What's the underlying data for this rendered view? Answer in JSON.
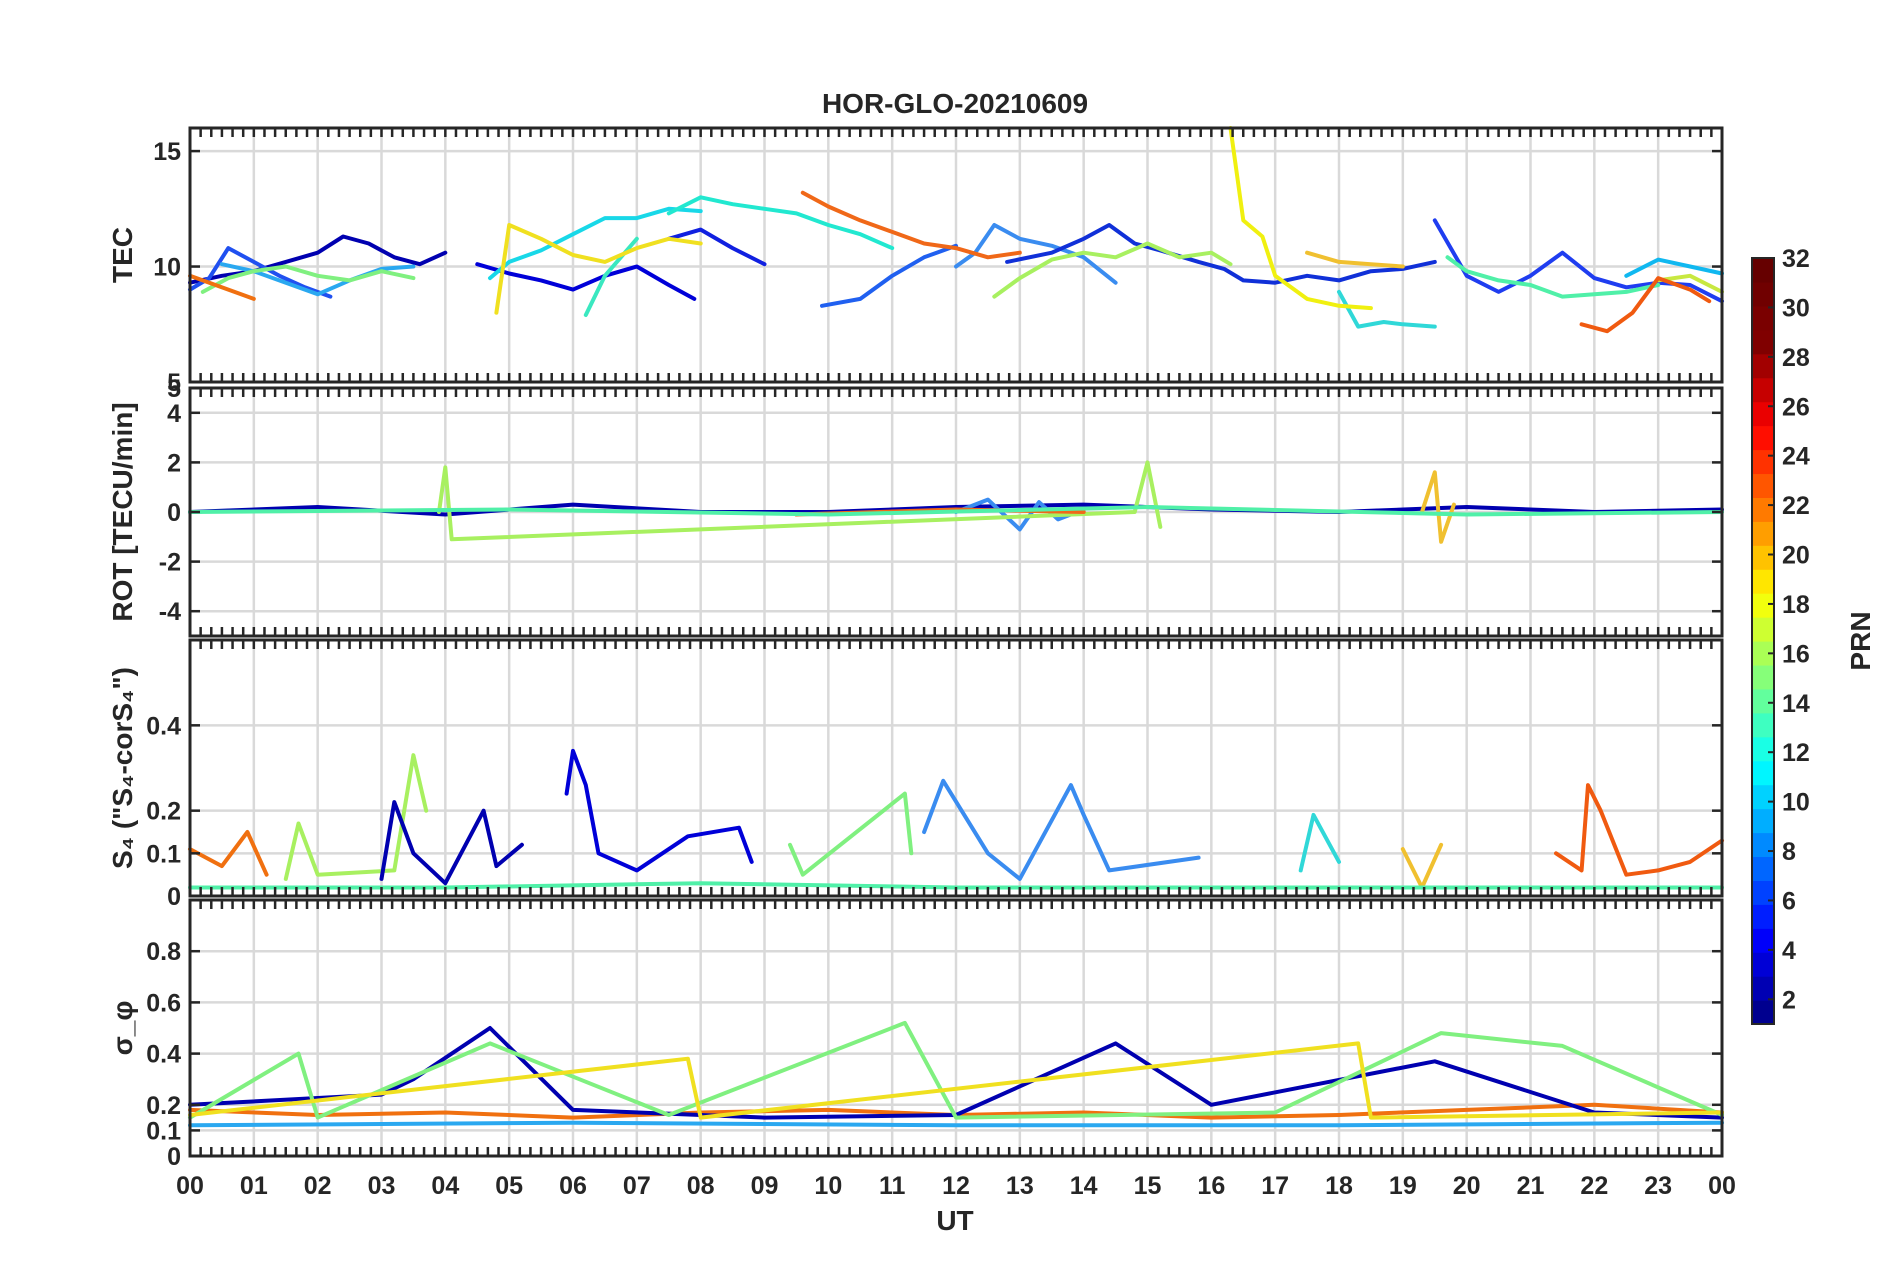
{
  "figure": {
    "title": "HOR-GLO-20210609"
  },
  "chart_data": [
    {
      "type": "line",
      "panel": "TEC",
      "ylabel": "TEC",
      "ylim": [
        5,
        16
      ],
      "yticks": [
        5,
        10,
        15
      ],
      "grid": true,
      "series": [
        {
          "name": "PRN 2",
          "color": "#0000b0",
          "x": [
            0.0,
            0.5,
            1.0,
            1.5,
            2.0,
            2.4,
            2.8,
            3.2,
            3.6,
            4.0
          ],
          "y": [
            9.3,
            9.6,
            9.8,
            10.2,
            10.6,
            11.3,
            11.0,
            10.4,
            10.1,
            10.6
          ]
        },
        {
          "name": "PRN 3",
          "color": "#0000d8",
          "x": [
            4.5,
            5.0,
            5.5,
            6.0,
            6.5,
            7.0,
            7.5,
            7.9
          ],
          "y": [
            10.1,
            9.7,
            9.4,
            9.0,
            9.6,
            10.0,
            9.2,
            8.6
          ]
        },
        {
          "name": "PRN 4",
          "color": "#1020e0",
          "x": [
            7.5,
            8.0,
            8.5,
            9.0
          ],
          "y": [
            11.2,
            11.6,
            10.8,
            10.1
          ]
        },
        {
          "name": "PRN 5",
          "color": "#2050f0",
          "x": [
            0.0,
            0.3,
            0.6,
            1.0,
            1.4,
            1.8,
            2.2
          ],
          "y": [
            9.0,
            9.5,
            10.8,
            10.2,
            9.6,
            9.1,
            8.7
          ]
        },
        {
          "name": "PRN 7",
          "color": "#2060f0",
          "x": [
            9.9,
            10.5,
            11.0,
            11.5,
            12.0
          ],
          "y": [
            8.3,
            8.6,
            9.6,
            10.4,
            10.9
          ]
        },
        {
          "name": "PRN 8",
          "color": "#3a8cf0",
          "x": [
            12.0,
            12.3,
            12.6,
            13.0,
            13.5,
            14.0,
            14.5
          ],
          "y": [
            10.0,
            10.6,
            11.8,
            11.2,
            10.9,
            10.4,
            9.3
          ]
        },
        {
          "name": "PRN 6",
          "color": "#1030d8",
          "x": [
            12.8,
            13.5,
            14.0,
            14.4,
            14.8,
            15.2,
            15.8,
            16.2,
            16.5,
            17.0,
            17.5,
            18.0,
            18.5,
            19.0,
            19.5
          ],
          "y": [
            10.2,
            10.6,
            11.2,
            11.8,
            11.0,
            10.7,
            10.2,
            9.9,
            9.4,
            9.3,
            9.6,
            9.4,
            9.8,
            9.9,
            10.2
          ]
        },
        {
          "name": "PRN 9",
          "color": "#1f3df0",
          "x": [
            19.5,
            20.0,
            20.5,
            21.0,
            21.5,
            22.0,
            22.5,
            23.0,
            23.5,
            24.0
          ],
          "y": [
            12.0,
            9.6,
            8.9,
            9.6,
            10.6,
            9.5,
            9.1,
            9.3,
            9.2,
            8.5
          ]
        },
        {
          "name": "PRN 10",
          "color": "#2aa8f0",
          "x": [
            0.5,
            1.0,
            1.5,
            2.0,
            2.5,
            3.0,
            3.5
          ],
          "y": [
            10.1,
            9.8,
            9.3,
            8.8,
            9.4,
            9.9,
            10.0
          ]
        },
        {
          "name": "PRN 11",
          "color": "#10b8f0",
          "x": [
            22.5,
            23.0,
            23.5,
            24.0
          ],
          "y": [
            9.6,
            10.3,
            10.0,
            9.7
          ]
        },
        {
          "name": "PRN 12",
          "color": "#18d8e8",
          "x": [
            4.7,
            5.0,
            5.5,
            6.0,
            6.5,
            7.0,
            7.5,
            8.0
          ],
          "y": [
            9.5,
            10.2,
            10.7,
            11.4,
            12.1,
            12.1,
            12.5,
            12.4
          ]
        },
        {
          "name": "PRN 13",
          "color": "#22e8d0",
          "x": [
            7.5,
            8.0,
            8.5,
            9.0,
            9.5,
            10.0,
            10.5,
            11.0
          ],
          "y": [
            12.3,
            13.0,
            12.7,
            12.5,
            12.3,
            11.8,
            11.4,
            10.8
          ]
        },
        {
          "name": "PRN 14",
          "color": "#3ae8c0",
          "x": [
            6.2,
            6.5,
            7.0
          ],
          "y": [
            7.9,
            9.6,
            11.2
          ]
        },
        {
          "name": "PRN 15",
          "color": "#30d8d8",
          "x": [
            18.0,
            18.3,
            18.7,
            19.0,
            19.5
          ],
          "y": [
            8.9,
            7.4,
            7.6,
            7.5,
            7.4
          ]
        },
        {
          "name": "PRN 16",
          "color": "#50f0a8",
          "x": [
            19.7,
            20.0,
            20.5,
            21.0,
            21.5,
            22.0,
            22.5,
            23.0
          ],
          "y": [
            10.4,
            9.8,
            9.4,
            9.2,
            8.7,
            8.8,
            8.9,
            9.2
          ]
        },
        {
          "name": "PRN 17",
          "color": "#80f080",
          "x": [
            0.2,
            0.6,
            1.0,
            1.5,
            2.0,
            2.5,
            3.0,
            3.5
          ],
          "y": [
            8.9,
            9.5,
            9.8,
            10.0,
            9.6,
            9.4,
            9.8,
            9.5
          ]
        },
        {
          "name": "PRN 18",
          "color": "#a8f060",
          "x": [
            12.6,
            13.0,
            13.5,
            14.0,
            14.5,
            15.0,
            15.5,
            16.0,
            16.3
          ],
          "y": [
            8.7,
            9.5,
            10.3,
            10.6,
            10.4,
            11.0,
            10.4,
            10.6,
            10.1
          ]
        },
        {
          "name": "PRN 19",
          "color": "#c8e840",
          "x": [
            23.0,
            23.5,
            24.0
          ],
          "y": [
            9.4,
            9.6,
            8.9
          ]
        },
        {
          "name": "PRN 20",
          "color": "#f0e020",
          "x": [
            4.8,
            5.0,
            5.5,
            6.0,
            6.5,
            7.0,
            7.5,
            8.0
          ],
          "y": [
            8.0,
            11.8,
            11.2,
            10.5,
            10.2,
            10.8,
            11.2,
            11.0
          ]
        },
        {
          "name": "PRN 21",
          "color": "#f0f010",
          "x": [
            16.3,
            16.5,
            16.8,
            17.0,
            17.5,
            18.0,
            18.5
          ],
          "y": [
            16.0,
            12.0,
            11.3,
            9.6,
            8.6,
            8.3,
            8.2
          ]
        },
        {
          "name": "PRN 22",
          "color": "#f0c030",
          "x": [
            17.5,
            18.0,
            18.5,
            19.0
          ],
          "y": [
            10.6,
            10.2,
            10.1,
            10.0
          ]
        },
        {
          "name": "PRN 24",
          "color": "#f07010",
          "x": [
            0.0,
            0.4,
            0.8,
            1.0
          ],
          "y": [
            9.6,
            9.2,
            8.8,
            8.6
          ]
        },
        {
          "name": "PRN 25",
          "color": "#f06818",
          "x": [
            9.6,
            10.0,
            10.5,
            11.0,
            11.5,
            12.0,
            12.5,
            13.0
          ],
          "y": [
            13.2,
            12.6,
            12.0,
            11.5,
            11.0,
            10.8,
            10.4,
            10.6
          ]
        },
        {
          "name": "PRN 26",
          "color": "#f05a10",
          "x": [
            21.8,
            22.2,
            22.6,
            23.0,
            23.5,
            23.8
          ],
          "y": [
            7.5,
            7.2,
            8.0,
            9.5,
            9.0,
            8.5
          ]
        }
      ]
    },
    {
      "type": "line",
      "panel": "ROT",
      "ylabel": "ROT [TECU/min]",
      "ylim": [
        -5,
        5
      ],
      "yticks": [
        -4,
        -2,
        0,
        2,
        4,
        5
      ],
      "grid": true,
      "series": [
        {
          "name": "PRN 2",
          "color": "#0000b0",
          "x": [
            0,
            2,
            4,
            6,
            8,
            10,
            12,
            14,
            16,
            18,
            20,
            22,
            24
          ],
          "y": [
            0,
            0.2,
            -0.1,
            0.3,
            0,
            0,
            0.2,
            0.3,
            0.1,
            0,
            0.2,
            0,
            0.1
          ]
        },
        {
          "name": "PRN 8",
          "color": "#3a8cf0",
          "x": [
            12.0,
            12.5,
            13.0,
            13.3,
            13.6,
            14.0
          ],
          "y": [
            0,
            0.5,
            -0.7,
            0.4,
            -0.3,
            0.1
          ]
        },
        {
          "name": "PRN 18",
          "color": "#a8f060",
          "x": [
            3.9,
            4.0,
            4.1,
            14.8,
            15.0,
            15.2
          ],
          "y": [
            0,
            1.8,
            -1.1,
            0,
            2.0,
            -0.6
          ]
        },
        {
          "name": "PRN 22",
          "color": "#f0c030",
          "x": [
            19.3,
            19.5,
            19.6,
            19.8
          ],
          "y": [
            0,
            1.6,
            -1.2,
            0.3
          ]
        },
        {
          "name": "PRN 25",
          "color": "#f06818",
          "x": [
            9.5,
            12.0,
            14.0
          ],
          "y": [
            -0.1,
            0.1,
            0
          ]
        },
        {
          "name": "PRN 16",
          "color": "#50f0a8",
          "x": [
            0,
            5,
            10,
            15,
            20,
            24
          ],
          "y": [
            0,
            0.1,
            -0.1,
            0.2,
            -0.1,
            0
          ]
        }
      ]
    },
    {
      "type": "line",
      "panel": "S4",
      "ylabel": "S₄ (\"S₄-corS₄\")",
      "ylim": [
        0,
        0.6
      ],
      "yticks": [
        0,
        0.1,
        0.2,
        0.4
      ],
      "grid": true,
      "series": [
        {
          "name": "PRN 24",
          "color": "#f07010",
          "x": [
            0,
            0.5,
            0.9,
            1.2
          ],
          "y": [
            0.11,
            0.07,
            0.15,
            0.05
          ]
        },
        {
          "name": "PRN 18",
          "color": "#a8f060",
          "x": [
            1.5,
            1.7,
            2.0,
            3.2,
            3.5,
            3.7
          ],
          "y": [
            0.04,
            0.17,
            0.05,
            0.06,
            0.33,
            0.2
          ]
        },
        {
          "name": "PRN 2",
          "color": "#0000b0",
          "x": [
            3.0,
            3.2,
            3.5,
            4.0,
            4.6,
            4.8,
            5.2
          ],
          "y": [
            0.04,
            0.22,
            0.1,
            0.03,
            0.2,
            0.07,
            0.12
          ]
        },
        {
          "name": "PRN 3",
          "color": "#0000d8",
          "x": [
            5.9,
            6.0,
            6.2,
            6.4,
            7.0,
            7.8,
            8.6,
            8.8
          ],
          "y": [
            0.24,
            0.34,
            0.26,
            0.1,
            0.06,
            0.14,
            0.16,
            0.08
          ]
        },
        {
          "name": "PRN 17",
          "color": "#80f080",
          "x": [
            9.4,
            9.6,
            11.2,
            11.3
          ],
          "y": [
            0.12,
            0.05,
            0.24,
            0.1
          ]
        },
        {
          "name": "PRN 8",
          "color": "#3a8cf0",
          "x": [
            11.5,
            11.8,
            12.5,
            13.0,
            13.8,
            14.0,
            14.4,
            15.8
          ],
          "y": [
            0.15,
            0.27,
            0.1,
            0.04,
            0.26,
            0.19,
            0.06,
            0.09
          ]
        },
        {
          "name": "PRN 15",
          "color": "#30d8d8",
          "x": [
            17.4,
            17.6,
            18.0
          ],
          "y": [
            0.06,
            0.19,
            0.08
          ]
        },
        {
          "name": "PRN 22",
          "color": "#f0c030",
          "x": [
            19.0,
            19.3,
            19.6
          ],
          "y": [
            0.11,
            0.02,
            0.12
          ]
        },
        {
          "name": "PRN 26",
          "color": "#f05a10",
          "x": [
            21.4,
            21.8,
            21.9,
            22.1,
            22.5,
            23.0,
            23.5,
            24.0
          ],
          "y": [
            0.1,
            0.06,
            0.26,
            0.2,
            0.05,
            0.06,
            0.08,
            0.13
          ]
        },
        {
          "name": "PRN 16",
          "color": "#50f0a8",
          "x": [
            0,
            4,
            8,
            12,
            16,
            20,
            24
          ],
          "y": [
            0.02,
            0.02,
            0.03,
            0.02,
            0.02,
            0.02,
            0.02
          ]
        }
      ]
    },
    {
      "type": "line",
      "panel": "sigma_phi",
      "ylabel": "σ_φ",
      "ylim": [
        0,
        1
      ],
      "yticks": [
        0,
        0.1,
        0.2,
        0.4,
        0.6,
        0.8
      ],
      "grid": true,
      "series": [
        {
          "name": "PRN 24",
          "color": "#f07010",
          "x": [
            0,
            2,
            4,
            6,
            8,
            10,
            12,
            14,
            16,
            18,
            20,
            22,
            24
          ],
          "y": [
            0.18,
            0.16,
            0.17,
            0.15,
            0.17,
            0.18,
            0.16,
            0.17,
            0.15,
            0.16,
            0.18,
            0.2,
            0.17
          ]
        },
        {
          "name": "PRN 2",
          "color": "#0000b0",
          "x": [
            0,
            3,
            3.5,
            4.7,
            6,
            9,
            12,
            14.5,
            16,
            19.5,
            22,
            24
          ],
          "y": [
            0.2,
            0.24,
            0.3,
            0.5,
            0.18,
            0.15,
            0.16,
            0.44,
            0.2,
            0.37,
            0.17,
            0.15
          ]
        },
        {
          "name": "PRN 17",
          "color": "#80f080",
          "x": [
            0,
            1.7,
            2,
            4.7,
            7.5,
            11.2,
            12,
            17,
            19.6,
            21.5,
            24
          ],
          "y": [
            0.15,
            0.4,
            0.15,
            0.44,
            0.16,
            0.52,
            0.15,
            0.17,
            0.48,
            0.43,
            0.16
          ]
        },
        {
          "name": "PRN 10",
          "color": "#2aa8f0",
          "x": [
            0,
            6,
            12,
            18,
            24
          ],
          "y": [
            0.12,
            0.13,
            0.12,
            0.12,
            0.13
          ]
        },
        {
          "name": "PRN 20",
          "color": "#f0e020",
          "x": [
            0,
            7.8,
            8,
            18.3,
            18.5,
            24
          ],
          "y": [
            0.16,
            0.38,
            0.15,
            0.44,
            0.15,
            0.17
          ]
        }
      ]
    }
  ],
  "xaxis": {
    "label": "UT",
    "ticks": [
      "00",
      "01",
      "02",
      "03",
      "04",
      "05",
      "06",
      "07",
      "08",
      "09",
      "10",
      "11",
      "12",
      "13",
      "14",
      "15",
      "16",
      "17",
      "18",
      "19",
      "20",
      "21",
      "22",
      "23",
      "00"
    ],
    "range": [
      0,
      24
    ]
  },
  "colorbar": {
    "label": "PRN",
    "range": [
      1,
      32
    ],
    "ticks": [
      "2",
      "4",
      "6",
      "8",
      "10",
      "12",
      "14",
      "16",
      "18",
      "20",
      "22",
      "24",
      "26",
      "28",
      "30",
      "32"
    ],
    "colors": [
      "#00008f",
      "#0000b3",
      "#0000d6",
      "#0000fa",
      "#001eff",
      "#0042ff",
      "#0066ff",
      "#008aff",
      "#00aeff",
      "#00d2ff",
      "#00f6ff",
      "#1aff e5",
      "#3effc1",
      "#62ff9d",
      "#86ff79",
      "#aaff55",
      "#ceff31",
      "#f2ff0d",
      "#ffe600",
      "#ffc200",
      "#ff9e00",
      "#ff7a00",
      "#ff5600",
      "#ff3200",
      "#ff0e00",
      "#ea0000",
      "#c60000",
      "#a20000",
      "#800000",
      "#7a0000",
      "#700000",
      "#660000"
    ]
  }
}
